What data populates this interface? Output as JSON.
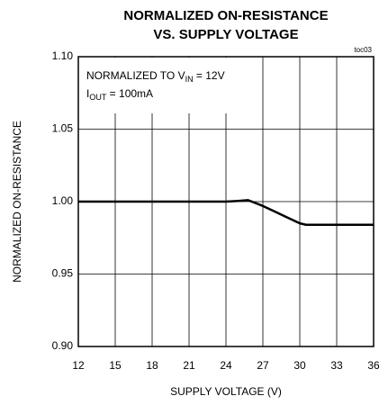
{
  "chart_data": {
    "type": "line",
    "title": [
      "NORMALIZED ON-RESISTANCE",
      "VS. SUPPLY VOLTAGE"
    ],
    "figure_id": "toc03",
    "xlabel": "SUPPLY VOLTAGE (V)",
    "ylabel": "NORMALIZED ON-RESISTANCE",
    "annotations": [
      [
        "NORMALIZED TO V",
        "IN",
        " = 12V"
      ],
      [
        "I",
        "OUT",
        " = 100mA"
      ]
    ],
    "xlim": [
      12,
      36
    ],
    "xticks": [
      12,
      15,
      18,
      21,
      24,
      27,
      30,
      33,
      36
    ],
    "ylim": [
      0.9,
      1.1
    ],
    "yticks": [
      {
        "value": 0.9,
        "label": "0.90"
      },
      0.95,
      {
        "value": 1.0,
        "label": "1.00"
      },
      1.05,
      {
        "value": 1.1,
        "label": "1.10"
      }
    ],
    "grid": true,
    "series": [
      {
        "color": "#000000",
        "x": [
          12,
          15,
          18,
          21,
          24,
          25,
          25.8,
          27,
          28,
          29,
          30,
          30.5,
          31,
          32,
          33,
          36
        ],
        "values": [
          1.0,
          1.0,
          1.0,
          1.0,
          1.0,
          1.0005,
          1.001,
          0.997,
          0.993,
          0.989,
          0.985,
          0.984,
          0.984,
          0.984,
          0.984,
          0.984
        ]
      }
    ]
  }
}
